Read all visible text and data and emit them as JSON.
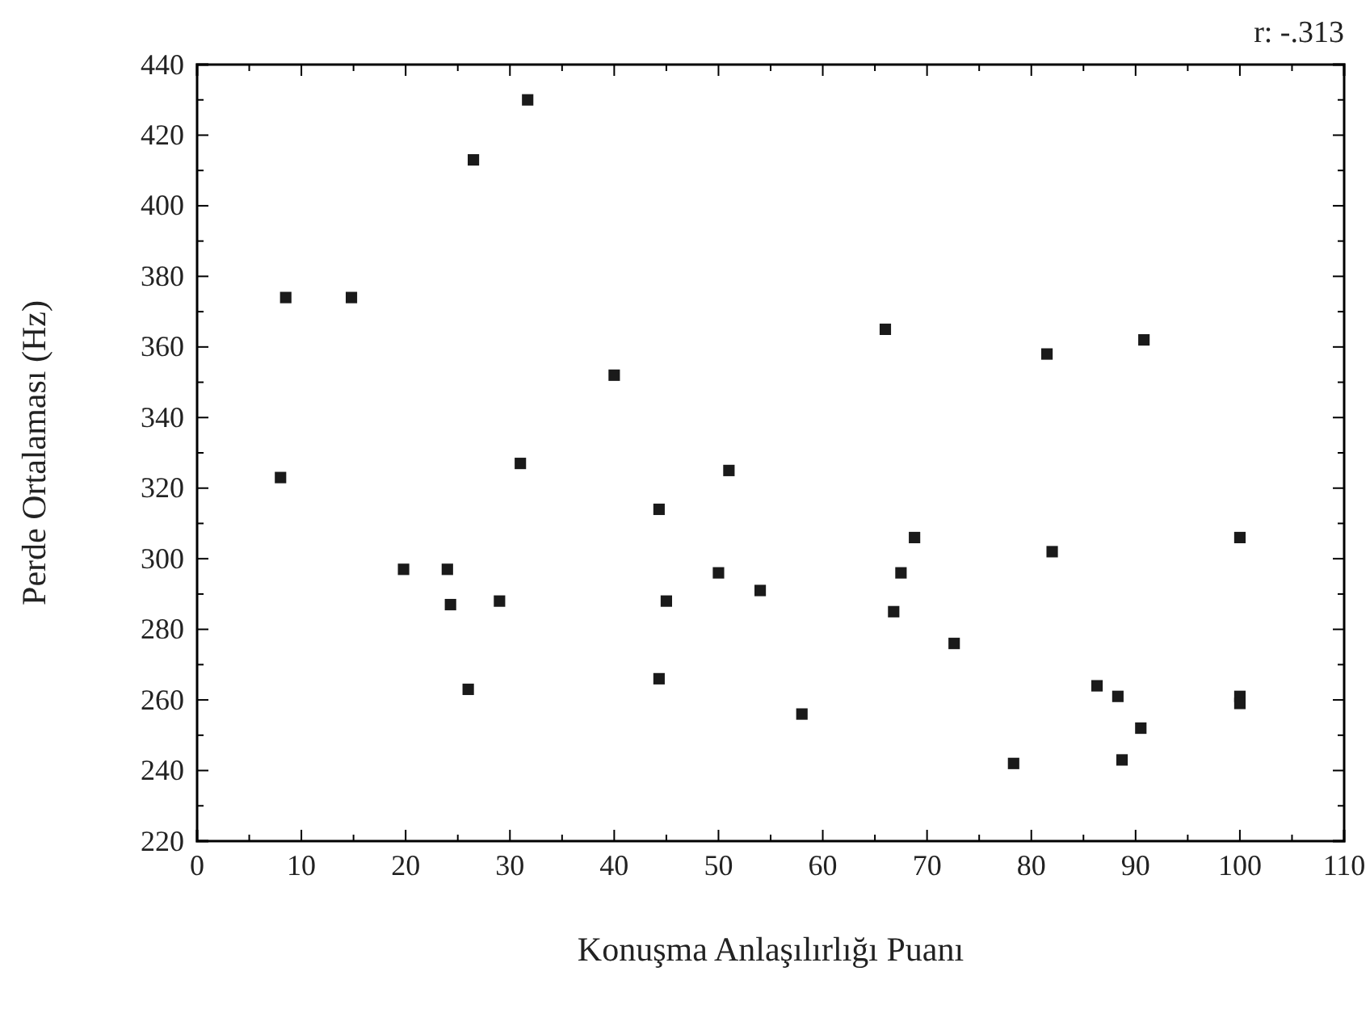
{
  "chart_data": {
    "type": "scatter",
    "xlabel": "Konuşma Anlaşılırlığı Puanı",
    "ylabel": "Perde Ortalaması (Hz)",
    "annotations": [
      "r: -.313"
    ],
    "x": [
      8,
      8.5,
      14.8,
      19.8,
      24,
      24.3,
      26,
      26.5,
      29,
      31,
      31.7,
      40,
      44.3,
      44.3,
      45,
      50,
      51,
      54,
      58,
      66,
      66.8,
      67.5,
      68.8,
      72.6,
      78.3,
      81.5,
      82,
      86.3,
      88.3,
      88.7,
      90.5,
      90.8,
      100,
      100,
      100
    ],
    "values": [
      323,
      374,
      374,
      297,
      297,
      287,
      263,
      413,
      288,
      327,
      430,
      352,
      314,
      266,
      288,
      296,
      325,
      291,
      256,
      365,
      285,
      296,
      306,
      276,
      242,
      358,
      302,
      264,
      261,
      243,
      252,
      362,
      306,
      261,
      259
    ],
    "color": "#1a1a1a",
    "marker": "square",
    "xlim": [
      0,
      110
    ],
    "xticks": [
      0,
      10,
      20,
      30,
      40,
      50,
      60,
      70,
      80,
      90,
      100,
      110
    ],
    "ylim": [
      220,
      440
    ],
    "yticks": [
      220,
      240,
      260,
      280,
      300,
      320,
      340,
      360,
      380,
      400,
      420,
      440
    ],
    "grid": false
  }
}
